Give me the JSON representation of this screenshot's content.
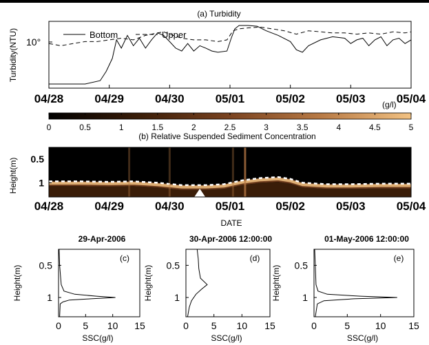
{
  "chart_data": [
    {
      "type": "line",
      "title": "(a) Turbidity",
      "ylabel": "Turbidity(NTU)",
      "xlabel": "",
      "yscale": "log",
      "yticks": [
        "10°"
      ],
      "x": [
        "04/28",
        "04/29",
        "04/30",
        "05/01",
        "05/02",
        "05/03",
        "05/04"
      ],
      "legend_position": "top-left",
      "series": [
        {
          "name": "Bottom",
          "style": "solid",
          "points": [
            [
              0,
              0.05
            ],
            [
              0.25,
              0.05
            ],
            [
              0.6,
              0.05
            ],
            [
              0.85,
              0.06
            ],
            [
              0.95,
              0.1
            ],
            [
              1.05,
              0.2
            ],
            [
              1.12,
              0.55
            ],
            [
              1.2,
              0.35
            ],
            [
              1.3,
              0.7
            ],
            [
              1.4,
              0.4
            ],
            [
              1.5,
              0.6
            ],
            [
              1.6,
              0.35
            ],
            [
              1.7,
              0.55
            ],
            [
              1.8,
              0.8
            ],
            [
              1.9,
              0.7
            ],
            [
              2.0,
              0.5
            ],
            [
              2.1,
              0.35
            ],
            [
              2.2,
              0.3
            ],
            [
              2.3,
              0.45
            ],
            [
              2.4,
              0.3
            ],
            [
              2.5,
              0.4
            ],
            [
              2.6,
              0.35
            ],
            [
              2.7,
              0.3
            ],
            [
              2.8,
              0.28
            ],
            [
              2.95,
              0.3
            ],
            [
              3.02,
              0.6
            ],
            [
              3.08,
              1.0
            ],
            [
              3.15,
              1.2
            ],
            [
              3.3,
              1.2
            ],
            [
              3.45,
              1.15
            ],
            [
              3.6,
              0.9
            ],
            [
              3.8,
              0.7
            ],
            [
              4.0,
              0.5
            ],
            [
              4.1,
              0.32
            ],
            [
              4.2,
              0.28
            ],
            [
              4.3,
              0.4
            ],
            [
              4.5,
              0.55
            ],
            [
              4.7,
              0.65
            ],
            [
              4.9,
              0.6
            ],
            [
              5.0,
              0.45
            ],
            [
              5.1,
              0.55
            ],
            [
              5.2,
              0.6
            ],
            [
              5.3,
              0.4
            ],
            [
              5.4,
              0.55
            ],
            [
              5.5,
              0.65
            ],
            [
              5.6,
              0.4
            ],
            [
              5.7,
              0.55
            ],
            [
              5.8,
              0.6
            ],
            [
              5.9,
              0.45
            ],
            [
              6.0,
              0.55
            ]
          ]
        },
        {
          "name": "Upper",
          "style": "dashed",
          "points": [
            [
              0,
              0.45
            ],
            [
              0.2,
              0.4
            ],
            [
              0.4,
              0.45
            ],
            [
              0.6,
              0.5
            ],
            [
              0.8,
              0.5
            ],
            [
              1.0,
              0.55
            ],
            [
              1.2,
              0.6
            ],
            [
              1.4,
              0.55
            ],
            [
              1.6,
              0.7
            ],
            [
              1.8,
              0.8
            ],
            [
              1.9,
              0.85
            ],
            [
              2.0,
              0.75
            ],
            [
              2.2,
              0.6
            ],
            [
              2.4,
              0.55
            ],
            [
              2.6,
              0.55
            ],
            [
              2.8,
              0.5
            ],
            [
              2.95,
              0.55
            ],
            [
              3.05,
              0.9
            ],
            [
              3.15,
              1.0
            ],
            [
              3.3,
              1.05
            ],
            [
              3.5,
              1.1
            ],
            [
              3.7,
              1.0
            ],
            [
              3.9,
              0.9
            ],
            [
              4.1,
              0.75
            ],
            [
              4.3,
              0.9
            ],
            [
              4.5,
              0.85
            ],
            [
              4.7,
              0.8
            ],
            [
              4.9,
              0.8
            ],
            [
              5.1,
              0.75
            ],
            [
              5.3,
              0.8
            ],
            [
              5.5,
              0.75
            ],
            [
              5.7,
              0.85
            ],
            [
              5.9,
              0.8
            ],
            [
              6.0,
              0.85
            ]
          ]
        }
      ]
    },
    {
      "type": "heatmap",
      "title": "(b) Relative Suspended Sediment Concentration",
      "colorbar_label": "(g/l)",
      "colorbar_ticks": [
        "0",
        "0.5",
        "1",
        "1.5",
        "2",
        "2.5",
        "3",
        "3.5",
        "4",
        "4.5",
        "5"
      ],
      "colorbar_range": [
        0,
        5
      ],
      "colors": [
        "#000000",
        "#3a1d08",
        "#7a4320",
        "#b87a45",
        "#f2c283"
      ],
      "xlabel": "DATE",
      "ylabel": "Height(m)",
      "yticks": [
        "0.5",
        "1"
      ],
      "ylim": [
        1.3,
        0.25
      ],
      "x": [
        "04/28",
        "04/29",
        "04/30",
        "05/01",
        "05/02",
        "05/03",
        "05/04"
      ],
      "bed_line": [
        [
          0,
          1.02
        ],
        [
          0.5,
          1.02
        ],
        [
          1.0,
          1.03
        ],
        [
          1.4,
          1.02
        ],
        [
          1.8,
          1.05
        ],
        [
          2.2,
          1.1
        ],
        [
          2.6,
          1.1
        ],
        [
          2.9,
          1.08
        ],
        [
          3.2,
          1.0
        ],
        [
          3.5,
          0.95
        ],
        [
          3.8,
          0.93
        ],
        [
          4.0,
          0.97
        ],
        [
          4.2,
          1.05
        ],
        [
          4.6,
          1.08
        ],
        [
          5.0,
          1.08
        ],
        [
          5.5,
          1.07
        ],
        [
          6.0,
          1.07
        ]
      ],
      "marker_date": "04/30 12:00"
    },
    {
      "type": "line",
      "title": "29-Apr-2006",
      "panel": "(c)",
      "xlabel": "SSC(g/l)",
      "ylabel": "Height(m)",
      "xlim": [
        0,
        15
      ],
      "xticks": [
        "0",
        "5",
        "10",
        "15"
      ],
      "yticks": [
        "0.5",
        "1"
      ],
      "ylim": [
        1.3,
        0.25
      ],
      "points": [
        [
          0.1,
          0.25
        ],
        [
          0.2,
          0.5
        ],
        [
          0.5,
          0.8
        ],
        [
          1.0,
          0.9
        ],
        [
          3,
          0.95
        ],
        [
          7,
          0.98
        ],
        [
          10.5,
          1.0
        ],
        [
          6,
          1.02
        ],
        [
          2,
          1.04
        ],
        [
          0.8,
          1.07
        ],
        [
          0.3,
          1.1
        ],
        [
          0.2,
          1.3
        ]
      ]
    },
    {
      "type": "line",
      "title": "30-Apr-2006 12:00:00",
      "panel": "(d)",
      "xlabel": "SSC(g/l)",
      "ylabel": "Height(m)",
      "xlim": [
        0,
        15
      ],
      "xticks": [
        "0",
        "5",
        "10",
        "15"
      ],
      "yticks": [
        "0.5",
        "1"
      ],
      "ylim": [
        1.3,
        0.25
      ],
      "points": [
        [
          2.0,
          0.25
        ],
        [
          2.2,
          0.4
        ],
        [
          2.3,
          0.55
        ],
        [
          2.6,
          0.7
        ],
        [
          3.8,
          0.8
        ],
        [
          2.8,
          0.87
        ],
        [
          1.8,
          0.95
        ],
        [
          1.0,
          1.05
        ],
        [
          0.6,
          1.15
        ],
        [
          0.3,
          1.3
        ]
      ]
    },
    {
      "type": "line",
      "title": "01-May-2006 12:00:00",
      "panel": "(e)",
      "xlabel": "SSC(g/l)",
      "ylabel": "Height(m)",
      "xlim": [
        0,
        15
      ],
      "xticks": [
        "0",
        "5",
        "10",
        "15"
      ],
      "yticks": [
        "0.5",
        "1"
      ],
      "ylim": [
        1.3,
        0.25
      ],
      "points": [
        [
          0.1,
          0.25
        ],
        [
          0.2,
          0.5
        ],
        [
          0.3,
          0.8
        ],
        [
          0.6,
          0.9
        ],
        [
          2,
          0.95
        ],
        [
          7,
          0.98
        ],
        [
          12.5,
          1.0
        ],
        [
          6,
          1.02
        ],
        [
          1.5,
          1.05
        ],
        [
          0.5,
          1.1
        ],
        [
          0.2,
          1.3
        ]
      ]
    }
  ]
}
